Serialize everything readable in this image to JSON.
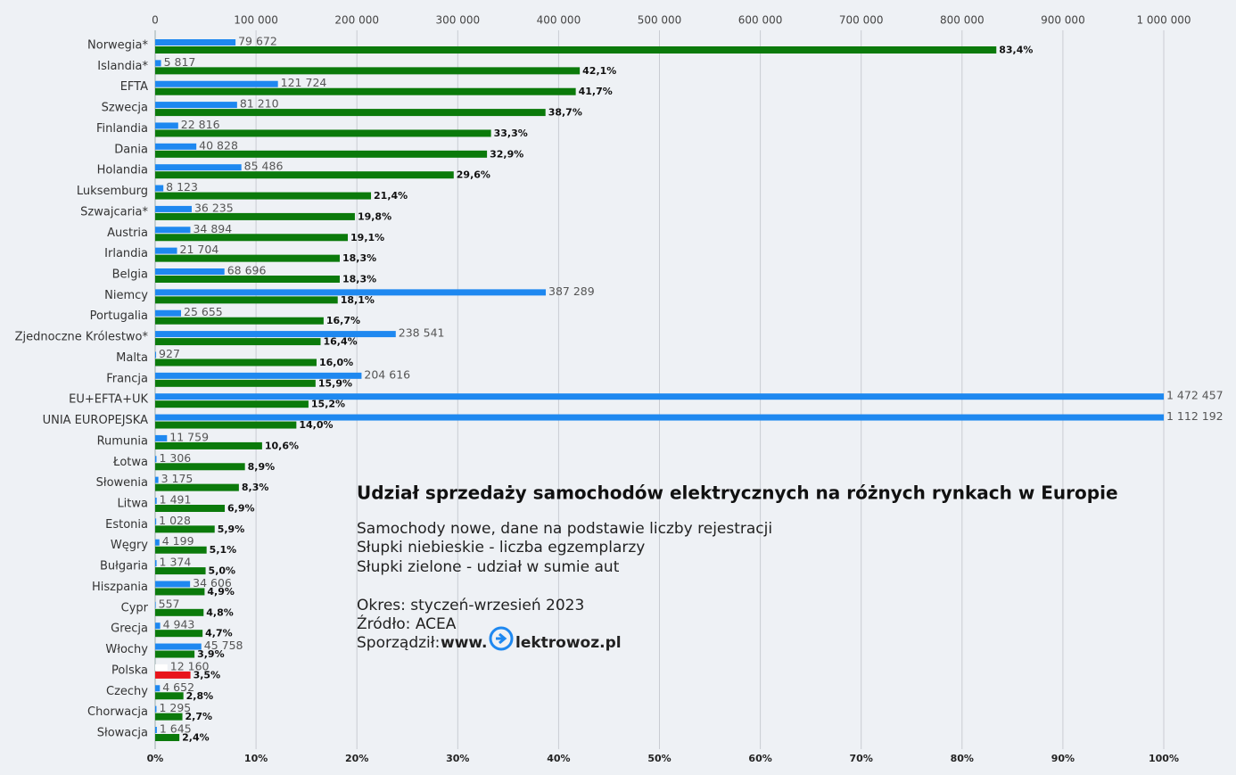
{
  "chart_data": {
    "type": "bar",
    "orientation": "horizontal",
    "title": "Udział sprzedaży samochodów elektrycznych na różnych rynkach w Europie",
    "notes": [
      "Samochody nowe, dane na podstawie liczby rejestracji",
      "Słupki niebieskie - liczba egzemplarzy",
      "Słupki zielone - udział w sumie aut"
    ],
    "period": "Okres: styczeń-wrzesień 2023",
    "source": "Źródło: ACEA",
    "author": {
      "label": "Sporządził:",
      "prefix": "www.",
      "site": "lektrowoz.pl"
    },
    "categories": [
      "Norwegia*",
      "Islandia*",
      "EFTA",
      "Szwecja",
      "Finlandia",
      "Dania",
      "Holandia",
      "Luksemburg",
      "Szwajcaria*",
      "Austria",
      "Irlandia",
      "Belgia",
      "Niemcy",
      "Portugalia",
      "Zjednoczne Królestwo*",
      "Malta",
      "Francja",
      "EU+EFTA+UK",
      "UNIA EUROPEJSKA",
      "Rumunia",
      "Łotwa",
      "Słowenia",
      "Litwa",
      "Estonia",
      "Węgry",
      "Bułgaria",
      "Hiszpania",
      "Cypr",
      "Grecja",
      "Włochy",
      "Polska",
      "Czechy",
      "Chorwacja",
      "Słowacja"
    ],
    "highlight_category": "Polska",
    "series": [
      {
        "axis": "x2",
        "color": "#1e88f0",
        "highlight_color": "#ffffff",
        "values": [
          79672,
          5817,
          121724,
          81210,
          22816,
          40828,
          85486,
          8123,
          36235,
          34894,
          21704,
          68696,
          387289,
          25655,
          238541,
          927,
          204616,
          1472457,
          1112192,
          11759,
          1306,
          3175,
          1491,
          1028,
          4199,
          1374,
          34606,
          557,
          4943,
          45758,
          12160,
          4652,
          1295,
          1645
        ],
        "value_labels": [
          "79 672",
          "5 817",
          "121 724",
          "81 210",
          "22 816",
          "40 828",
          "85 486",
          "8 123",
          "36 235",
          "34 894",
          "21 704",
          "68 696",
          "387 289",
          "25 655",
          "238 541",
          "927",
          "204 616",
          "1 472 457",
          "1 112 192",
          "11 759",
          "1 306",
          "3 175",
          "1 491",
          "1 028",
          "4 199",
          "1 374",
          "34 606",
          "557",
          "4 943",
          "45 758",
          "12 160",
          "4 652",
          "1 295",
          "1 645"
        ]
      },
      {
        "axis": "x",
        "color": "#0b7a0b",
        "highlight_color": "#e8141b",
        "values": [
          83.4,
          42.1,
          41.7,
          38.7,
          33.3,
          32.9,
          29.6,
          21.4,
          19.8,
          19.1,
          18.3,
          18.3,
          18.1,
          16.7,
          16.4,
          16.0,
          15.9,
          15.2,
          14.0,
          10.6,
          8.9,
          8.3,
          6.9,
          5.9,
          5.1,
          5.0,
          4.9,
          4.8,
          4.7,
          3.9,
          3.5,
          2.8,
          2.7,
          2.4
        ],
        "value_labels": [
          "83,4%",
          "42,1%",
          "41,7%",
          "38,7%",
          "33,3%",
          "32,9%",
          "29,6%",
          "21,4%",
          "19,8%",
          "19,1%",
          "18,3%",
          "18,3%",
          "18,1%",
          "16,7%",
          "16,4%",
          "16,0%",
          "15,9%",
          "15,2%",
          "14,0%",
          "10,6%",
          "8,9%",
          "8,3%",
          "6,9%",
          "5,9%",
          "5,1%",
          "5,0%",
          "4,9%",
          "4,8%",
          "4,7%",
          "3,9%",
          "3,5%",
          "2,8%",
          "2,7%",
          "2,4%"
        ]
      }
    ],
    "xlim": [
      0,
      100
    ],
    "xticks": [
      {
        "value": 0,
        "label": "0%"
      },
      {
        "value": 10,
        "label": "10%"
      },
      {
        "value": 20,
        "label": "20%"
      },
      {
        "value": 30,
        "label": "30%"
      },
      {
        "value": 40,
        "label": "40%"
      },
      {
        "value": 50,
        "label": "50%"
      },
      {
        "value": 60,
        "label": "60%"
      },
      {
        "value": 70,
        "label": "70%"
      },
      {
        "value": 80,
        "label": "80%"
      },
      {
        "value": 90,
        "label": "90%"
      },
      {
        "value": 100,
        "label": "100%"
      }
    ],
    "x2lim": [
      0,
      1000000
    ],
    "x2ticks": [
      0,
      {
        "value": 100000,
        "label": "100 000"
      },
      {
        "value": 200000,
        "label": "200 000"
      },
      {
        "value": 300000,
        "label": "300 000"
      },
      {
        "value": 400000,
        "label": "400 000"
      },
      {
        "value": 500000,
        "label": "500 000"
      },
      {
        "value": 600000,
        "label": "600 000"
      },
      {
        "value": 700000,
        "label": "700 000"
      },
      {
        "value": 800000,
        "label": "800 000"
      },
      {
        "value": 900000,
        "label": "900 000"
      },
      {
        "value": 1000000,
        "label": "1 000 000"
      }
    ],
    "grid": true
  }
}
